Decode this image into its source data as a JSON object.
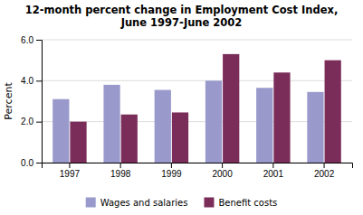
{
  "chart_data": {
    "type": "bar",
    "title": "12-month percent change in Employment Cost Index,",
    "subtitle": "June 1997-June 2002",
    "categories": [
      "1997",
      "1998",
      "1999",
      "2000",
      "2001",
      "2002"
    ],
    "series": [
      {
        "name": "Wages and salaries",
        "color": "#9999CC",
        "values": [
          3.1,
          3.8,
          3.55,
          4.0,
          3.65,
          3.45
        ]
      },
      {
        "name": "Benefit costs",
        "color": "#7B2D5A",
        "values": [
          2.0,
          2.35,
          2.45,
          5.3,
          4.4,
          5.0
        ]
      }
    ],
    "y_label": "Percent",
    "ylim": [
      0.0,
      6.0
    ],
    "yticks": [
      {
        "value": 0.0,
        "label": "0.0"
      },
      {
        "value": 2.0,
        "label": "2.0"
      },
      {
        "value": 4.0,
        "label": "4.0"
      },
      {
        "value": 6.0,
        "label": "6.0"
      }
    ],
    "grid": true,
    "legend": "bottom"
  }
}
